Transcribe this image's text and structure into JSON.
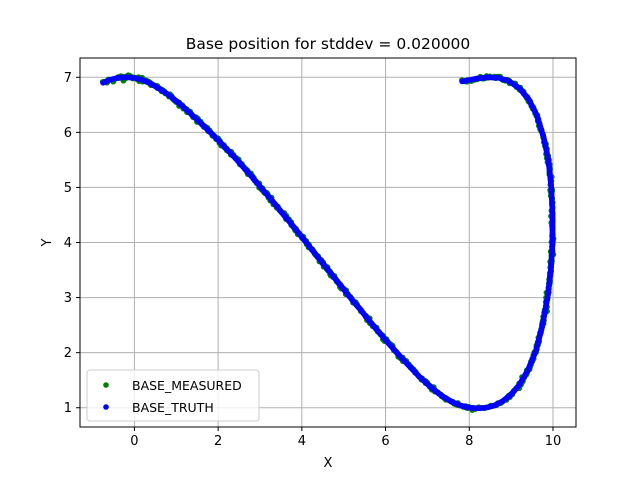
{
  "chart_data": {
    "type": "scatter",
    "title": "Base position for stddev = 0.020000",
    "xlabel": "X",
    "ylabel": "Y",
    "xlim": [
      -1.3,
      10.55
    ],
    "ylim": [
      0.65,
      7.35
    ],
    "xticks": [
      0,
      2,
      4,
      6,
      8,
      10
    ],
    "yticks": [
      1,
      2,
      3,
      4,
      5,
      6,
      7
    ],
    "grid": true,
    "legend_position": "lower left",
    "series": [
      {
        "name": "BASE_MEASURED",
        "color": "#008000",
        "marker": "dot",
        "noise": 0.02,
        "points": [
          [
            -0.75,
            6.9
          ],
          [
            -0.6,
            6.95
          ],
          [
            -0.4,
            6.99
          ],
          [
            -0.2,
            7.0
          ],
          [
            0.0,
            6.99
          ],
          [
            0.2,
            6.95
          ],
          [
            0.4,
            6.88
          ],
          [
            0.6,
            6.79
          ],
          [
            0.8,
            6.69
          ],
          [
            1.0,
            6.57
          ],
          [
            1.2,
            6.44
          ],
          [
            1.4,
            6.3
          ],
          [
            1.6,
            6.16
          ],
          [
            1.8,
            6.01
          ],
          [
            2.0,
            5.86
          ],
          [
            2.2,
            5.7
          ],
          [
            2.4,
            5.54
          ],
          [
            2.6,
            5.37
          ],
          [
            2.8,
            5.2
          ],
          [
            3.0,
            5.02
          ],
          [
            3.2,
            4.84
          ],
          [
            3.4,
            4.66
          ],
          [
            3.6,
            4.47
          ],
          [
            3.8,
            4.29
          ],
          [
            4.0,
            4.1
          ],
          [
            4.2,
            3.91
          ],
          [
            4.4,
            3.72
          ],
          [
            4.6,
            3.53
          ],
          [
            4.8,
            3.34
          ],
          [
            5.0,
            3.15
          ],
          [
            5.2,
            2.96
          ],
          [
            5.4,
            2.78
          ],
          [
            5.6,
            2.59
          ],
          [
            5.8,
            2.41
          ],
          [
            6.0,
            2.23
          ],
          [
            6.2,
            2.06
          ],
          [
            6.4,
            1.89
          ],
          [
            6.6,
            1.73
          ],
          [
            6.8,
            1.57
          ],
          [
            7.0,
            1.43
          ],
          [
            7.2,
            1.3
          ],
          [
            7.4,
            1.19
          ],
          [
            7.6,
            1.1
          ],
          [
            7.8,
            1.04
          ],
          [
            8.0,
            1.0
          ],
          [
            8.2,
            0.99
          ],
          [
            8.4,
            1.0
          ],
          [
            8.6,
            1.04
          ],
          [
            8.8,
            1.12
          ],
          [
            9.0,
            1.24
          ],
          [
            9.2,
            1.42
          ],
          [
            9.4,
            1.68
          ],
          [
            9.6,
            2.05
          ],
          [
            9.75,
            2.5
          ],
          [
            9.87,
            3.0
          ],
          [
            9.95,
            3.5
          ],
          [
            9.99,
            4.0
          ],
          [
            9.99,
            4.5
          ],
          [
            9.96,
            5.0
          ],
          [
            9.89,
            5.5
          ],
          [
            9.78,
            5.9
          ],
          [
            9.62,
            6.3
          ],
          [
            9.42,
            6.6
          ],
          [
            9.2,
            6.8
          ],
          [
            8.95,
            6.93
          ],
          [
            8.7,
            6.99
          ],
          [
            8.45,
            7.0
          ],
          [
            8.2,
            6.98
          ],
          [
            8.0,
            6.95
          ],
          [
            7.8,
            6.92
          ]
        ]
      },
      {
        "name": "BASE_TRUTH",
        "color": "#0000ff",
        "marker": "dot",
        "noise": 0.0,
        "points": [
          [
            -0.75,
            6.9
          ],
          [
            -0.6,
            6.95
          ],
          [
            -0.4,
            6.99
          ],
          [
            -0.2,
            7.0
          ],
          [
            0.0,
            6.99
          ],
          [
            0.2,
            6.95
          ],
          [
            0.4,
            6.88
          ],
          [
            0.6,
            6.79
          ],
          [
            0.8,
            6.69
          ],
          [
            1.0,
            6.57
          ],
          [
            1.2,
            6.44
          ],
          [
            1.4,
            6.3
          ],
          [
            1.6,
            6.16
          ],
          [
            1.8,
            6.01
          ],
          [
            2.0,
            5.86
          ],
          [
            2.2,
            5.7
          ],
          [
            2.4,
            5.54
          ],
          [
            2.6,
            5.37
          ],
          [
            2.8,
            5.2
          ],
          [
            3.0,
            5.02
          ],
          [
            3.2,
            4.84
          ],
          [
            3.4,
            4.66
          ],
          [
            3.6,
            4.47
          ],
          [
            3.8,
            4.29
          ],
          [
            4.0,
            4.1
          ],
          [
            4.2,
            3.91
          ],
          [
            4.4,
            3.72
          ],
          [
            4.6,
            3.53
          ],
          [
            4.8,
            3.34
          ],
          [
            5.0,
            3.15
          ],
          [
            5.2,
            2.96
          ],
          [
            5.4,
            2.78
          ],
          [
            5.6,
            2.59
          ],
          [
            5.8,
            2.41
          ],
          [
            6.0,
            2.23
          ],
          [
            6.2,
            2.06
          ],
          [
            6.4,
            1.89
          ],
          [
            6.6,
            1.73
          ],
          [
            6.8,
            1.57
          ],
          [
            7.0,
            1.43
          ],
          [
            7.2,
            1.3
          ],
          [
            7.4,
            1.19
          ],
          [
            7.6,
            1.1
          ],
          [
            7.8,
            1.04
          ],
          [
            8.0,
            1.0
          ],
          [
            8.2,
            0.99
          ],
          [
            8.4,
            1.0
          ],
          [
            8.6,
            1.04
          ],
          [
            8.8,
            1.12
          ],
          [
            9.0,
            1.24
          ],
          [
            9.2,
            1.42
          ],
          [
            9.4,
            1.68
          ],
          [
            9.6,
            2.05
          ],
          [
            9.75,
            2.5
          ],
          [
            9.87,
            3.0
          ],
          [
            9.95,
            3.5
          ],
          [
            9.99,
            4.0
          ],
          [
            9.99,
            4.5
          ],
          [
            9.96,
            5.0
          ],
          [
            9.89,
            5.5
          ],
          [
            9.78,
            5.9
          ],
          [
            9.62,
            6.3
          ],
          [
            9.42,
            6.6
          ],
          [
            9.2,
            6.8
          ],
          [
            8.95,
            6.93
          ],
          [
            8.7,
            6.99
          ],
          [
            8.45,
            7.0
          ],
          [
            8.2,
            6.98
          ],
          [
            8.0,
            6.95
          ],
          [
            7.8,
            6.92
          ]
        ]
      }
    ]
  }
}
